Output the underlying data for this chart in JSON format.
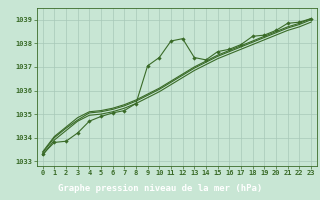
{
  "title": "Graphe pression niveau de la mer (hPa)",
  "xlabel_hours": [
    0,
    1,
    2,
    3,
    4,
    5,
    6,
    7,
    8,
    9,
    10,
    11,
    12,
    13,
    14,
    15,
    16,
    17,
    18,
    19,
    20,
    21,
    22,
    23
  ],
  "ylim": [
    1032.8,
    1039.5
  ],
  "yticks": [
    1033,
    1034,
    1035,
    1036,
    1037,
    1038,
    1039
  ],
  "line1_x": [
    0,
    1,
    2,
    3,
    4,
    5,
    6,
    7,
    8,
    9,
    10,
    11,
    12,
    13,
    14,
    15,
    16,
    17,
    18,
    19,
    20,
    21,
    22,
    23
  ],
  "line1_y": [
    1033.3,
    1033.8,
    1033.85,
    1034.2,
    1034.7,
    1034.9,
    1035.05,
    1035.15,
    1035.45,
    1037.05,
    1037.4,
    1038.1,
    1038.2,
    1037.4,
    1037.3,
    1037.65,
    1037.75,
    1037.95,
    1038.3,
    1038.35,
    1038.55,
    1038.85,
    1038.9,
    1039.05
  ],
  "line2_x": [
    0,
    1,
    2,
    3,
    4,
    5,
    6,
    7,
    8,
    9,
    10,
    11,
    12,
    13,
    14,
    15,
    16,
    17,
    18,
    19,
    20,
    21,
    22,
    23
  ],
  "line2_y": [
    1033.35,
    1034.0,
    1034.4,
    1034.75,
    1035.05,
    1035.1,
    1035.2,
    1035.35,
    1035.55,
    1035.8,
    1036.05,
    1036.35,
    1036.65,
    1036.95,
    1037.2,
    1037.45,
    1037.65,
    1037.85,
    1038.05,
    1038.25,
    1038.45,
    1038.65,
    1038.8,
    1039.0
  ],
  "line3_x": [
    0,
    1,
    2,
    3,
    4,
    5,
    6,
    7,
    8,
    9,
    10,
    11,
    12,
    13,
    14,
    15,
    16,
    17,
    18,
    19,
    20,
    21,
    22,
    23
  ],
  "line3_y": [
    1033.4,
    1034.05,
    1034.45,
    1034.85,
    1035.1,
    1035.15,
    1035.25,
    1035.4,
    1035.6,
    1035.85,
    1036.1,
    1036.4,
    1036.7,
    1037.0,
    1037.25,
    1037.5,
    1037.7,
    1037.9,
    1038.1,
    1038.3,
    1038.5,
    1038.7,
    1038.85,
    1039.05
  ],
  "line4_x": [
    0,
    1,
    2,
    3,
    4,
    5,
    6,
    7,
    8,
    9,
    10,
    11,
    12,
    13,
    14,
    15,
    16,
    17,
    18,
    19,
    20,
    21,
    22,
    23
  ],
  "line4_y": [
    1033.25,
    1033.9,
    1034.3,
    1034.7,
    1034.95,
    1035.0,
    1035.1,
    1035.25,
    1035.45,
    1035.7,
    1035.95,
    1036.25,
    1036.55,
    1036.85,
    1037.1,
    1037.35,
    1037.55,
    1037.75,
    1037.95,
    1038.15,
    1038.35,
    1038.55,
    1038.7,
    1038.9
  ],
  "line_color": "#3a6b28",
  "bg_color": "#c8e6d4",
  "grid_color": "#a8c8b8",
  "title_bg": "#2d5a1b",
  "title_fg": "#ffffff",
  "tick_fontsize": 5.0,
  "title_fontsize": 6.5
}
